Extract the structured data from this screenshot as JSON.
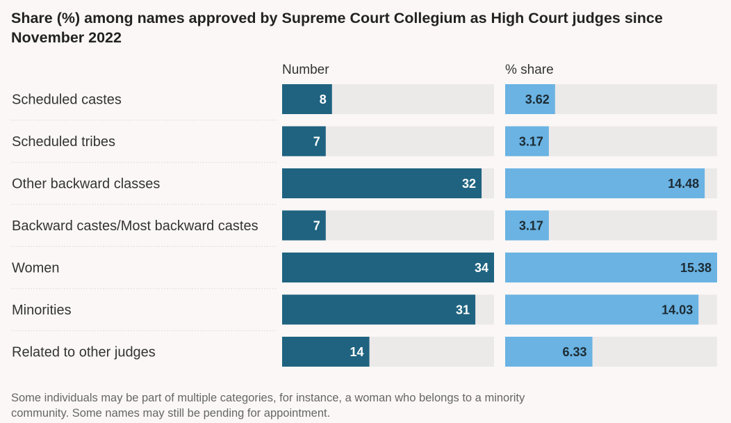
{
  "title_lines": [
    "Share (%) among names approved by Supreme Court Collegium as High Court judges since",
    "November 2022"
  ],
  "footnote_lines": [
    "Some individuals may be part of multiple categories, for instance, a woman who belongs to a minority",
    "community. Some names may still be pending for appointment."
  ],
  "colors": {
    "number_bar": "#1f6380",
    "share_bar": "#6ab3e3",
    "track": "#ece9e9",
    "divider": "#dcdcdc"
  },
  "chart_data": {
    "type": "bar",
    "title": "Share (%) among names approved by Supreme Court Collegium as High Court judges since November 2022",
    "categories": [
      "Scheduled castes",
      "Scheduled tribes",
      "Other backward classes",
      "Backward castes/Most backward castes",
      "Women",
      "Minorities",
      "Related to other judges"
    ],
    "series": [
      {
        "name": "Number",
        "values": [
          8,
          7,
          32,
          7,
          34,
          31,
          14
        ],
        "labels": [
          "8",
          "7",
          "32",
          "7",
          "34",
          "31",
          "14"
        ],
        "xlim": [
          0,
          34
        ]
      },
      {
        "name": "% share",
        "values": [
          3.62,
          3.17,
          14.48,
          3.17,
          15.38,
          14.03,
          6.33
        ],
        "labels": [
          "3.62",
          "3.17",
          "14.48",
          "3.17",
          "15.38",
          "14.03",
          "6.33"
        ],
        "xlim": [
          0,
          15.38
        ]
      }
    ]
  }
}
